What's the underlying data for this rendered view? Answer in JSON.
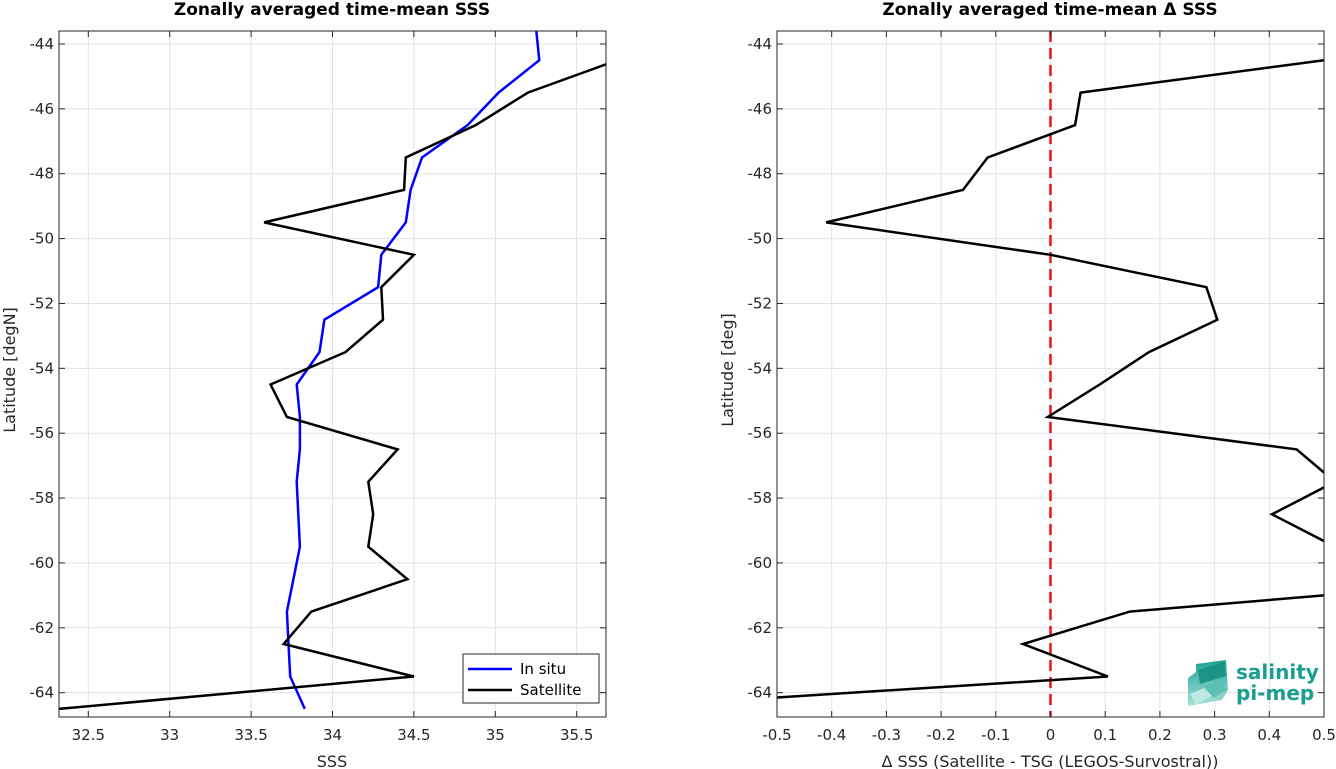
{
  "chart_data": [
    {
      "type": "line",
      "title": "Zonally averaged time-mean SSS",
      "xlabel": "SSS",
      "ylabel": "Latitude [degN]",
      "xlim": [
        32.32,
        35.68
      ],
      "ylim": [
        -64.75,
        -43.6
      ],
      "xticks": [
        32.5,
        33,
        33.5,
        34,
        34.5,
        35,
        35.5
      ],
      "xtick_labels": [
        "32.5",
        "33",
        "33.5",
        "34",
        "34.5",
        "35",
        "35.5"
      ],
      "yticks": [
        -44,
        -46,
        -48,
        -50,
        -52,
        -54,
        -56,
        -58,
        -60,
        -62,
        -64
      ],
      "ytick_labels": [
        "-44",
        "-46",
        "-48",
        "-50",
        "-52",
        "-54",
        "-56",
        "-58",
        "-60",
        "-62",
        "-64"
      ],
      "grid": true,
      "legend_position": "bottom-right",
      "series": [
        {
          "name": "In situ",
          "color": "#0000ff",
          "x": [
            35.25,
            35.27,
            35.02,
            34.83,
            34.55,
            34.48,
            34.45,
            34.3,
            34.28,
            33.95,
            33.92,
            33.78,
            33.8,
            33.8,
            33.78,
            33.8,
            33.76,
            33.72,
            33.73,
            33.74,
            33.83
          ],
          "y": [
            -43.5,
            -44.5,
            -45.5,
            -46.5,
            -47.5,
            -48.5,
            -49.5,
            -50.5,
            -51.5,
            -52.5,
            -53.5,
            -54.5,
            -55.5,
            -56.5,
            -57.5,
            -59.5,
            -60.5,
            -61.5,
            -62.5,
            -63.5,
            -64.5
          ]
        },
        {
          "name": "Satellite",
          "color": "#000000",
          "x": [
            35.75,
            35.2,
            34.88,
            34.45,
            34.44,
            33.58,
            34.5,
            34.3,
            34.31,
            34.08,
            33.62,
            33.72,
            34.4,
            34.22,
            34.25,
            34.22,
            34.46,
            33.87,
            33.7,
            34.5,
            32.32
          ],
          "y": [
            -44.5,
            -45.5,
            -46.5,
            -47.5,
            -48.5,
            -49.5,
            -50.5,
            -51.5,
            -52.5,
            -53.5,
            -54.5,
            -55.5,
            -56.5,
            -57.5,
            -58.5,
            -59.5,
            -60.5,
            -61.5,
            -62.5,
            -63.5,
            -64.5
          ]
        }
      ]
    },
    {
      "type": "line",
      "title": "Zonally averaged time-mean Δ SSS",
      "xlabel": "Δ SSS (Satellite - TSG (LEGOS-Survostral))",
      "ylabel": "Latitude [deg]",
      "xlim": [
        -0.5,
        0.5
      ],
      "ylim": [
        -64.75,
        -43.6
      ],
      "xticks": [
        -0.5,
        -0.4,
        -0.3,
        -0.2,
        -0.1,
        0,
        0.1,
        0.2,
        0.3,
        0.4,
        0.5
      ],
      "xtick_labels": [
        "-0.5",
        "-0.4",
        "-0.3",
        "-0.2",
        "-0.1",
        "0",
        "0.1",
        "0.2",
        "0.3",
        "0.4",
        "0.5"
      ],
      "yticks": [
        -44,
        -46,
        -48,
        -50,
        -52,
        -54,
        -56,
        -58,
        -60,
        -62,
        -64
      ],
      "ytick_labels": [
        "-44",
        "-46",
        "-48",
        "-50",
        "-52",
        "-54",
        "-56",
        "-58",
        "-60",
        "-62",
        "-64"
      ],
      "grid": true,
      "reference_line": {
        "x": 0,
        "color": "#e8131b",
        "style": "dashed"
      },
      "series": [
        {
          "name": "",
          "color": "#000000",
          "x": [
            0.55,
            0.5,
            0.055,
            0.045,
            -0.115,
            -0.16,
            -0.41,
            0.0,
            0.285,
            0.305,
            0.18,
            0.09,
            -0.005,
            0.45,
            0.52,
            0.405,
            0.52,
            0.55,
            0.5,
            0.145,
            -0.05,
            0.105,
            -0.55
          ],
          "y": [
            -44.3,
            -44.5,
            -45.5,
            -46.5,
            -47.5,
            -48.5,
            -49.5,
            -50.5,
            -51.5,
            -52.5,
            -53.5,
            -54.5,
            -55.5,
            -56.5,
            -57.5,
            -58.5,
            -59.5,
            -61.0,
            -61.0,
            -61.5,
            -62.5,
            -63.5,
            -64.2
          ]
        }
      ]
    }
  ],
  "legend": {
    "items": [
      {
        "label": "In situ",
        "color": "#0000ff"
      },
      {
        "label": "Satellite",
        "color": "#000000"
      }
    ]
  },
  "logo": {
    "line1": "salinity",
    "line2": "pi-mep",
    "colors": {
      "top": "#1a9e8f",
      "bottom": "#7fd0c4"
    }
  }
}
